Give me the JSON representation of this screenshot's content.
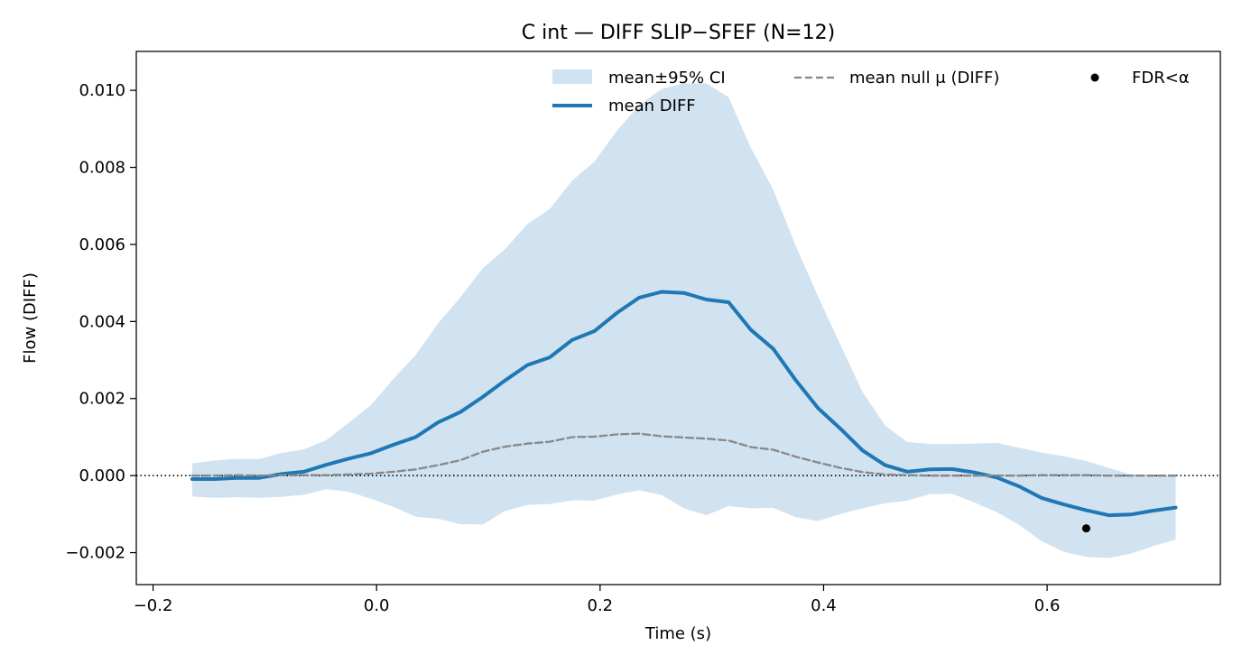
{
  "chart_data": {
    "type": "line",
    "title": "C int — DIFF SLIP−SFEF (N=12)",
    "xlabel": "Time (s)",
    "ylabel": "Flow (DIFF)",
    "xlim": [
      -0.215,
      0.755
    ],
    "ylim": [
      -0.00283,
      0.01101
    ],
    "xticks": [
      -0.2,
      0.0,
      0.2,
      0.4,
      0.6
    ],
    "xtick_labels": [
      "−0.2",
      "0.0",
      "0.2",
      "0.4",
      "0.6"
    ],
    "yticks": [
      -0.002,
      0.0,
      0.002,
      0.004,
      0.006,
      0.008,
      0.01
    ],
    "ytick_labels": [
      "−0.002",
      "0.000",
      "0.002",
      "0.004",
      "0.006",
      "0.008",
      "0.010"
    ],
    "grid": false,
    "legend_position": "top-right",
    "x": [
      -0.165,
      -0.145,
      -0.125,
      -0.105,
      -0.085,
      -0.065,
      -0.045,
      -0.025,
      -0.005,
      0.015,
      0.035,
      0.055,
      0.075,
      0.095,
      0.115,
      0.135,
      0.155,
      0.175,
      0.195,
      0.215,
      0.235,
      0.255,
      0.275,
      0.295,
      0.315,
      0.335,
      0.355,
      0.375,
      0.395,
      0.415,
      0.435,
      0.455,
      0.475,
      0.495,
      0.515,
      0.535,
      0.555,
      0.575,
      0.595,
      0.615,
      0.635,
      0.655,
      0.675,
      0.695,
      0.715
    ],
    "series": [
      {
        "name": "mean±95% CI",
        "kind": "band",
        "color": "#c6dbec",
        "upper": [
          0.00032,
          0.00039,
          0.00043,
          0.00043,
          0.00059,
          0.00068,
          0.00092,
          0.00137,
          0.00183,
          0.00251,
          0.00313,
          0.00395,
          0.00463,
          0.00538,
          0.00588,
          0.00653,
          0.00692,
          0.00766,
          0.00815,
          0.00895,
          0.00962,
          0.01003,
          0.01018,
          0.01018,
          0.00982,
          0.0085,
          0.00742,
          0.00597,
          0.00465,
          0.0034,
          0.00216,
          0.0013,
          0.00087,
          0.00082,
          0.00082,
          0.00083,
          0.00085,
          0.00072,
          0.0006,
          0.0005,
          0.00038,
          0.0002,
          3e-05,
          0.0,
          0.0
        ],
        "lower": [
          -0.00054,
          -0.00058,
          -0.00056,
          -0.00058,
          -0.00055,
          -0.0005,
          -0.00035,
          -0.00042,
          -0.0006,
          -0.00081,
          -0.00107,
          -0.00112,
          -0.00126,
          -0.00127,
          -0.00092,
          -0.00076,
          -0.00074,
          -0.00064,
          -0.00065,
          -0.00049,
          -0.00038,
          -0.0005,
          -0.00085,
          -0.00103,
          -0.00079,
          -0.00085,
          -0.00084,
          -0.00108,
          -0.00118,
          -0.001,
          -0.00085,
          -0.00072,
          -0.00065,
          -0.00048,
          -0.00047,
          -0.0007,
          -0.00095,
          -0.00128,
          -0.0017,
          -0.00198,
          -0.00211,
          -0.00214,
          -0.00203,
          -0.00183,
          -0.00166
        ]
      },
      {
        "name": "mean DIFF",
        "kind": "line",
        "color": "#1f77b4",
        "values": [
          -9e-05,
          -9e-05,
          -6e-05,
          -6e-05,
          4e-05,
          0.0001,
          0.00028,
          0.00044,
          0.00058,
          0.0008,
          0.001,
          0.00138,
          0.00165,
          0.00204,
          0.00247,
          0.00287,
          0.00307,
          0.00352,
          0.00375,
          0.00422,
          0.00462,
          0.00477,
          0.00474,
          0.00457,
          0.0045,
          0.00378,
          0.00329,
          0.00248,
          0.00175,
          0.00122,
          0.00065,
          0.00027,
          0.0001,
          0.00016,
          0.00017,
          8e-05,
          -5e-05,
          -0.00028,
          -0.00058,
          -0.00075,
          -0.0009,
          -0.00103,
          -0.00101,
          -0.00091,
          -0.00083
        ]
      },
      {
        "name": "mean null μ (DIFF)",
        "kind": "dashed",
        "color": "#888888",
        "values": [
          0.0,
          0.0,
          1e-05,
          0.0,
          1e-05,
          1e-05,
          1e-05,
          3e-05,
          5e-05,
          0.0001,
          0.00016,
          0.00027,
          0.0004,
          0.00062,
          0.00075,
          0.00083,
          0.00088,
          0.001,
          0.00101,
          0.00107,
          0.00109,
          0.00102,
          0.00099,
          0.00096,
          0.00091,
          0.00074,
          0.00067,
          0.00049,
          0.00034,
          0.0002,
          9e-05,
          3e-05,
          1e-05,
          0.0,
          0.0,
          0.0,
          0.0,
          0.0,
          1e-05,
          1e-05,
          1e-05,
          0.0,
          0.0,
          0.0,
          0.0
        ]
      },
      {
        "name": "FDR<α",
        "kind": "scatter",
        "color": "#000000",
        "points": [
          {
            "x": 0.635,
            "y": -0.00137
          }
        ]
      }
    ],
    "reference_line": {
      "y": 0.0,
      "style": "dotted",
      "color": "#000000"
    }
  }
}
